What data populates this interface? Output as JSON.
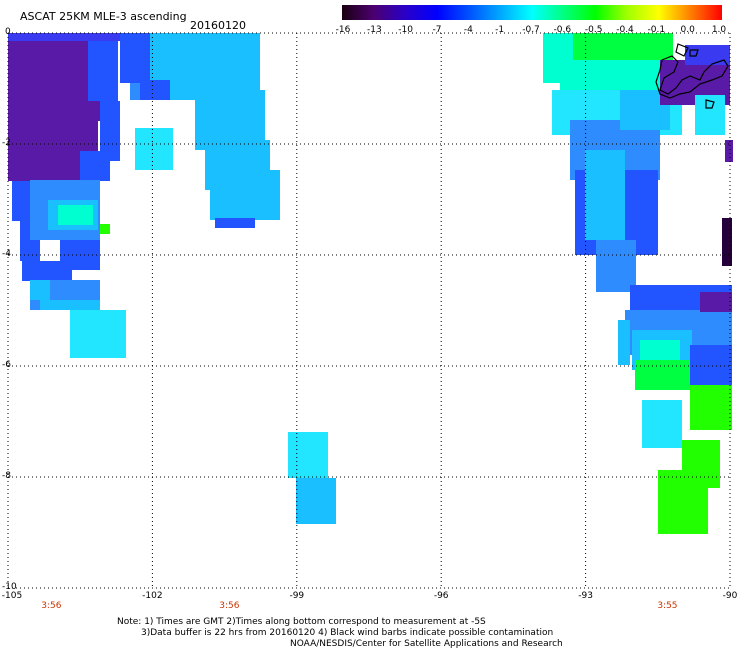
{
  "header": {
    "product": "ASCAT 25KM MLE-3 ascending",
    "date": "20160120"
  },
  "colorbar": {
    "labels": [
      "-16",
      "-13",
      "-10",
      "-7",
      "-4",
      "-1",
      "-0.7",
      "-0.6",
      "-0.5",
      "-0.4",
      "-0.1",
      "0.0",
      "1.0"
    ],
    "colors": [
      "#1a0010",
      "#4b0070",
      "#2a00c8",
      "#0000ff",
      "#0050ff",
      "#00a8ff",
      "#00ffff",
      "#00ff80",
      "#00ff00",
      "#a0ff00",
      "#ffff00",
      "#ff8000",
      "#ff0000"
    ]
  },
  "axes": {
    "lon_ticks": [
      "-105",
      "-102",
      "-99",
      "-96",
      "-93",
      "-90"
    ],
    "lon_values": [
      -105,
      -102,
      -99,
      -96,
      -93,
      -90
    ],
    "lat_ticks": [
      "0",
      "-2",
      "-4",
      "-6",
      "-8",
      "-10"
    ],
    "lat_values": [
      0,
      -2,
      -4,
      -6,
      -8,
      -10
    ],
    "lon_range": [
      -105,
      -90
    ],
    "lat_range": [
      -10,
      0
    ],
    "grid": "dotted"
  },
  "times": [
    {
      "label": "3:56",
      "lon": -104.1
    },
    {
      "label": "3:56",
      "lon": -100.4
    },
    {
      "label": "3:55",
      "lon": -91.3
    }
  ],
  "notes": {
    "line1": "Note: 1) Times are GMT 2)Times along bottom correspond to measurement at -5S",
    "line2": "3)Data buffer is 22 hrs from 20160120 4) Black wind barbs indicate possible contamination",
    "line3": "NOAA/NESDIS/Center for Satellite Applications and Research"
  },
  "colors": {
    "purple": "#5a1aa8",
    "deep_blue": "#3a3af0",
    "blue": "#2255ff",
    "mid_blue": "#2f8cff",
    "sky": "#19bfff",
    "cyan": "#22e6ff",
    "aqua": "#00ffd0",
    "green": "#00ff40",
    "bright_green": "#22ff00",
    "land_outline": "#000000"
  }
}
